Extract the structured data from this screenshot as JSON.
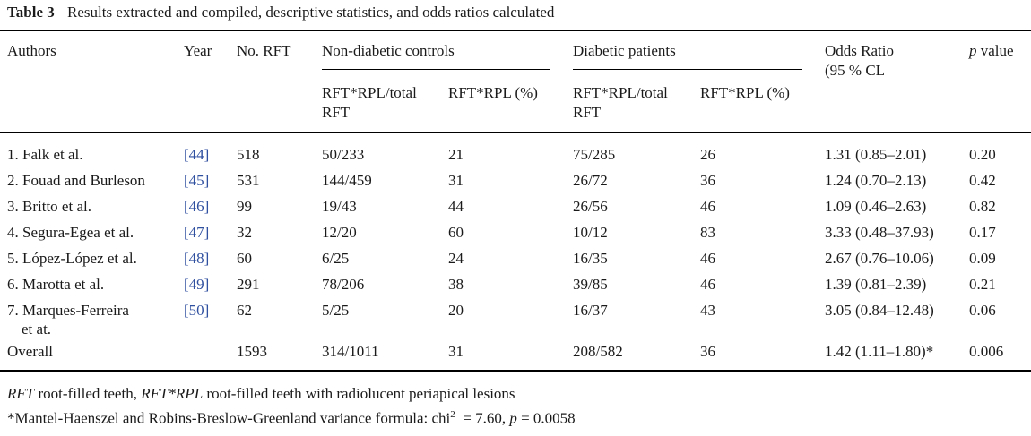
{
  "caption": {
    "label": "Table 3",
    "text": "Results extracted and compiled, descriptive statistics, and odds ratios calculated"
  },
  "headers": {
    "authors": "Authors",
    "year": "Year",
    "no_rft": "No. RFT",
    "non_diabetic": "Non-diabetic controls",
    "diabetic": "Diabetic patients",
    "odds_ratio": "Odds Ratio",
    "odds_ratio_sub": "(95 % CL",
    "p_value_italic": "p",
    "p_value_rest": " value",
    "ratio_line1": "RFT*RPL/total",
    "ratio_line2": "RFT",
    "percent": "RFT*RPL (%)"
  },
  "rows": [
    {
      "author": "1. Falk et al.",
      "author2": "",
      "ref": "[44]",
      "n": "518",
      "nd_ratio": "50/233",
      "nd_pct": "21",
      "d_ratio": "75/285",
      "d_pct": "26",
      "or": "1.31 (0.85–2.01)",
      "p": "0.20"
    },
    {
      "author": "2. Fouad and Burleson",
      "author2": "",
      "ref": "[45]",
      "n": "531",
      "nd_ratio": "144/459",
      "nd_pct": "31",
      "d_ratio": "26/72",
      "d_pct": "36",
      "or": "1.24 (0.70–2.13)",
      "p": "0.42"
    },
    {
      "author": "3. Britto et al.",
      "author2": "",
      "ref": "[46]",
      "n": "99",
      "nd_ratio": "19/43",
      "nd_pct": "44",
      "d_ratio": "26/56",
      "d_pct": "46",
      "or": "1.09 (0.46–2.63)",
      "p": "0.82"
    },
    {
      "author": "4. Segura-Egea et al.",
      "author2": "",
      "ref": "[47]",
      "n": "32",
      "nd_ratio": "12/20",
      "nd_pct": "60",
      "d_ratio": "10/12",
      "d_pct": "83",
      "or": "3.33 (0.48–37.93)",
      "p": "0.17"
    },
    {
      "author": "5. López-López et al.",
      "author2": "",
      "ref": "[48]",
      "n": "60",
      "nd_ratio": "6/25",
      "nd_pct": "24",
      "d_ratio": "16/35",
      "d_pct": "46",
      "or": "2.67 (0.76–10.06)",
      "p": "0.09"
    },
    {
      "author": "6. Marotta et al.",
      "author2": "",
      "ref": "[49]",
      "n": "291",
      "nd_ratio": "78/206",
      "nd_pct": "38",
      "d_ratio": "39/85",
      "d_pct": "46",
      "or": "1.39 (0.81–2.39)",
      "p": "0.21"
    },
    {
      "author": "7. Marques-Ferreira",
      "author2": "et at.",
      "ref": "[50]",
      "n": "62",
      "nd_ratio": "5/25",
      "nd_pct": "20",
      "d_ratio": "16/37",
      "d_pct": "43",
      "or": "3.05 (0.84–12.48)",
      "p": "0.06"
    },
    {
      "author": "Overall",
      "author2": "",
      "ref": "",
      "n": "1593",
      "nd_ratio": "314/1011",
      "nd_pct": "31",
      "d_ratio": "208/582",
      "d_pct": "36",
      "or": "1.42 (1.11–1.80)*",
      "p": "0.006"
    }
  ],
  "footnotes": {
    "abbr_1_term": "RFT",
    "abbr_1_def": " root-filled teeth, ",
    "abbr_2_term": "RFT*RPL",
    "abbr_2_def": " root-filled teeth with radiolucent periapical lesions",
    "note_prefix": "*Mantel-Haenszel and Robins-Breslow-Greenland variance formula: chi",
    "note_sup": "2",
    "note_mid": "  = 7.60, ",
    "note_p": "p",
    "note_end": " = 0.0058"
  },
  "colors": {
    "reference_link": "#2f4f9f",
    "rule": "#000000"
  }
}
